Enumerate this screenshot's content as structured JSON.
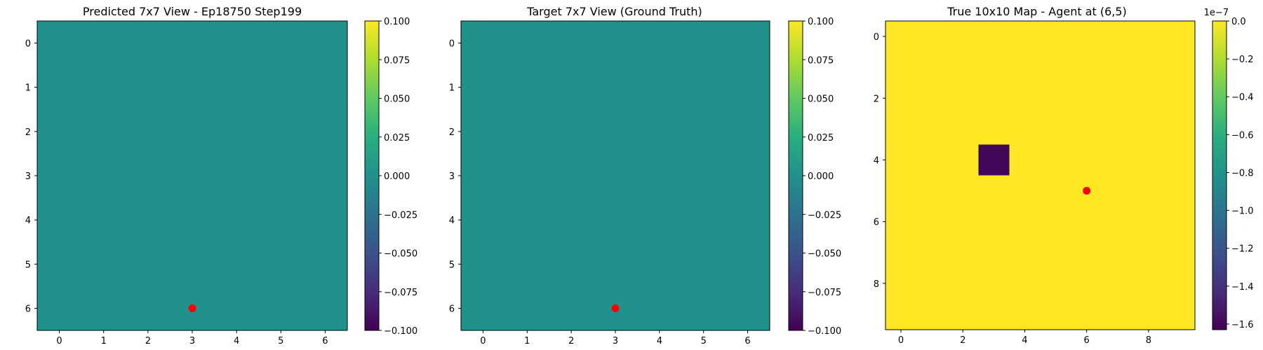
{
  "chart_data": [
    {
      "type": "heatmap",
      "title": "Predicted 7x7 View - Ep18750 Step199",
      "grid_size": [
        7,
        7
      ],
      "values": [
        [
          0,
          0,
          0,
          0,
          0,
          0,
          0
        ],
        [
          0,
          0,
          0,
          0,
          0,
          0,
          0
        ],
        [
          0,
          0,
          0,
          0,
          0,
          0,
          0
        ],
        [
          0,
          0,
          0,
          0,
          0,
          0,
          0
        ],
        [
          0,
          0,
          0,
          0,
          0,
          0,
          0
        ],
        [
          0,
          0,
          0,
          0,
          0,
          0,
          0
        ],
        [
          0,
          0,
          0,
          0,
          0,
          0,
          0
        ]
      ],
      "x_ticks": [
        0,
        1,
        2,
        3,
        4,
        5,
        6
      ],
      "y_ticks": [
        0,
        1,
        2,
        3,
        4,
        5,
        6
      ],
      "colorbar": {
        "range": [
          -0.1,
          0.1
        ],
        "ticks": [
          "0.100",
          "0.075",
          "0.050",
          "0.025",
          "0.000",
          "−0.025",
          "−0.050",
          "−0.075",
          "−0.100"
        ],
        "tick_values": [
          0.1,
          0.075,
          0.05,
          0.025,
          0.0,
          -0.025,
          -0.05,
          -0.075,
          -0.1
        ],
        "offset_label": ""
      },
      "colormap": "viridis",
      "marker": {
        "x": 3,
        "y": 6,
        "color": "#ff0000"
      }
    },
    {
      "type": "heatmap",
      "title": "Target 7x7 View (Ground Truth)",
      "grid_size": [
        7,
        7
      ],
      "values": [
        [
          0,
          0,
          0,
          0,
          0,
          0,
          0
        ],
        [
          0,
          0,
          0,
          0,
          0,
          0,
          0
        ],
        [
          0,
          0,
          0,
          0,
          0,
          0,
          0
        ],
        [
          0,
          0,
          0,
          0,
          0,
          0,
          0
        ],
        [
          0,
          0,
          0,
          0,
          0,
          0,
          0
        ],
        [
          0,
          0,
          0,
          0,
          0,
          0,
          0
        ],
        [
          0,
          0,
          0,
          0,
          0,
          0,
          0
        ]
      ],
      "x_ticks": [
        0,
        1,
        2,
        3,
        4,
        5,
        6
      ],
      "y_ticks": [
        0,
        1,
        2,
        3,
        4,
        5,
        6
      ],
      "colorbar": {
        "range": [
          -0.1,
          0.1
        ],
        "ticks": [
          "0.100",
          "0.075",
          "0.050",
          "0.025",
          "0.000",
          "−0.025",
          "−0.050",
          "−0.075",
          "−0.100"
        ],
        "tick_values": [
          0.1,
          0.075,
          0.05,
          0.025,
          0.0,
          -0.025,
          -0.05,
          -0.075,
          -0.1
        ],
        "offset_label": ""
      },
      "colormap": "viridis",
      "marker": {
        "x": 3,
        "y": 6,
        "color": "#ff0000"
      }
    },
    {
      "type": "heatmap",
      "title": "True 10x10 Map - Agent at (6,5)",
      "grid_size": [
        10,
        10
      ],
      "values": [
        [
          0,
          0,
          0,
          0,
          0,
          0,
          0,
          0,
          0,
          0
        ],
        [
          0,
          0,
          0,
          0,
          0,
          0,
          0,
          0,
          0,
          0
        ],
        [
          0,
          0,
          0,
          0,
          0,
          0,
          0,
          0,
          0,
          0
        ],
        [
          0,
          0,
          0,
          0,
          0,
          0,
          0,
          0,
          0,
          0
        ],
        [
          0,
          0,
          0,
          -1.6e-07,
          0,
          0,
          0,
          0,
          0,
          0
        ],
        [
          0,
          0,
          0,
          0,
          0,
          0,
          0,
          0,
          0,
          0
        ],
        [
          0,
          0,
          0,
          0,
          0,
          0,
          0,
          0,
          0,
          0
        ],
        [
          0,
          0,
          0,
          0,
          0,
          0,
          0,
          0,
          0,
          0
        ],
        [
          0,
          0,
          0,
          0,
          0,
          0,
          0,
          0,
          0,
          0
        ],
        [
          0,
          0,
          0,
          0,
          0,
          0,
          0,
          0,
          0,
          0
        ]
      ],
      "x_ticks": [
        0,
        2,
        4,
        6,
        8
      ],
      "y_ticks": [
        0,
        2,
        4,
        6,
        8
      ],
      "colorbar": {
        "range": [
          -1.63e-07,
          0.0
        ],
        "ticks": [
          "0.0",
          "−0.2",
          "−0.4",
          "−0.6",
          "−0.8",
          "−1.0",
          "−1.2",
          "−1.4",
          "−1.6"
        ],
        "tick_values": [
          0.0,
          -2e-08,
          -4e-08,
          -6e-08,
          -8e-08,
          -1e-07,
          -1.2e-07,
          -1.4e-07,
          -1.6e-07
        ],
        "offset_label": "1e−7"
      },
      "colormap": "viridis",
      "marker": {
        "x": 6,
        "y": 5,
        "color": "#ff0000"
      }
    }
  ]
}
